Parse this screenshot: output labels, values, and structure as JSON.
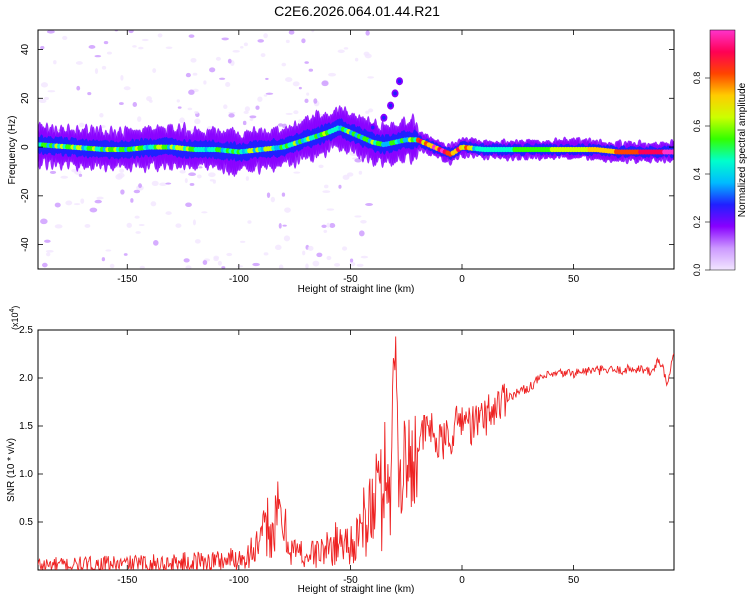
{
  "title": "C2E6.2026.064.01.44.R21",
  "chart_data": [
    {
      "type": "heatmap",
      "xlabel": "Height of straight line (km)",
      "ylabel": "Frequency (Hz)",
      "xlim": [
        -190,
        95
      ],
      "ylim": [
        -50,
        48
      ],
      "xticks": [
        -150,
        -100,
        -50,
        0,
        50
      ],
      "yticks": [
        -40,
        -20,
        0,
        20,
        40
      ],
      "colorbar": {
        "label": "Normalized spectral amplitude",
        "range": [
          0,
          1
        ],
        "ticks": [
          "0.0",
          "0.2",
          "0.4",
          "0.6",
          "0.8"
        ],
        "colors": [
          "#f2e6ff",
          "#cc99ff",
          "#8800ff",
          "#2020ff",
          "#00bbff",
          "#00ffcc",
          "#33ff00",
          "#ccff00",
          "#ffcc00",
          "#ff4400",
          "#ff0055",
          "#ff33cc"
        ]
      },
      "ridge": {
        "x": [
          -190,
          -175,
          -160,
          -150,
          -140,
          -130,
          -120,
          -110,
          -100,
          -90,
          -80,
          -70,
          -60,
          -55,
          -50,
          -45,
          -40,
          -35,
          -30,
          -25,
          -20,
          -15,
          -10,
          -5,
          0,
          10,
          20,
          30,
          40,
          50,
          60,
          70,
          80,
          90,
          95
        ],
        "y": [
          1,
          0,
          -1,
          -1,
          0,
          0,
          -1,
          -1,
          -2,
          -1,
          0,
          3,
          6,
          8,
          6,
          4,
          2,
          1,
          2,
          3,
          3,
          1,
          -1,
          -3,
          0,
          -1,
          -1,
          -1,
          -1,
          -1,
          -1,
          -2,
          -2,
          -2,
          -2
        ]
      },
      "branch": {
        "x": [
          -40,
          -35,
          -32,
          -30,
          -28
        ],
        "y": [
          8,
          12,
          17,
          22,
          27
        ]
      }
    },
    {
      "type": "line",
      "xlabel": "Height of straight line (km)",
      "ylabel": "SNR (10 * v/v)",
      "multiplier": "(x10^4)",
      "multiplier_base": "(x10",
      "multiplier_exp": "4",
      "multiplier_close": ")",
      "xlim": [
        -190,
        95
      ],
      "ylim": [
        0,
        2.5
      ],
      "xticks": [
        -150,
        -100,
        -50,
        0,
        50
      ],
      "yticks": [
        "0.5",
        "1.0",
        "1.5",
        "2.0",
        "2.5"
      ],
      "color": "#ee2222",
      "series": [
        {
          "x": [
            -190,
            -170,
            -150,
            -130,
            -110,
            -100,
            -95,
            -90,
            -87,
            -85,
            -82,
            -80,
            -78,
            -75,
            -70,
            -65,
            -60,
            -55,
            -50,
            -45,
            -42,
            -40,
            -38,
            -36,
            -34,
            -32,
            -31,
            -30,
            -29,
            -28,
            -26,
            -25,
            -22,
            -20,
            -15,
            -10,
            -5,
            0,
            5,
            10,
            15,
            20,
            25,
            30,
            35,
            40,
            45,
            50,
            55,
            60,
            70,
            80,
            85,
            88,
            90,
            92,
            95
          ],
          "y": [
            0.05,
            0.05,
            0.06,
            0.07,
            0.1,
            0.12,
            0.18,
            0.28,
            0.5,
            0.35,
            0.6,
            0.45,
            0.3,
            0.2,
            0.15,
            0.18,
            0.22,
            0.3,
            0.28,
            0.35,
            0.7,
            0.5,
            1.0,
            0.7,
            1.2,
            0.8,
            1.6,
            2.5,
            1.5,
            0.9,
            1.3,
            1.0,
            1.2,
            1.3,
            1.5,
            1.3,
            1.4,
            1.6,
            1.5,
            1.6,
            1.7,
            1.8,
            1.85,
            1.9,
            2.0,
            2.03,
            2.05,
            2.05,
            2.07,
            2.08,
            2.08,
            2.1,
            2.05,
            2.2,
            2.1,
            1.9,
            2.3
          ]
        }
      ]
    }
  ]
}
